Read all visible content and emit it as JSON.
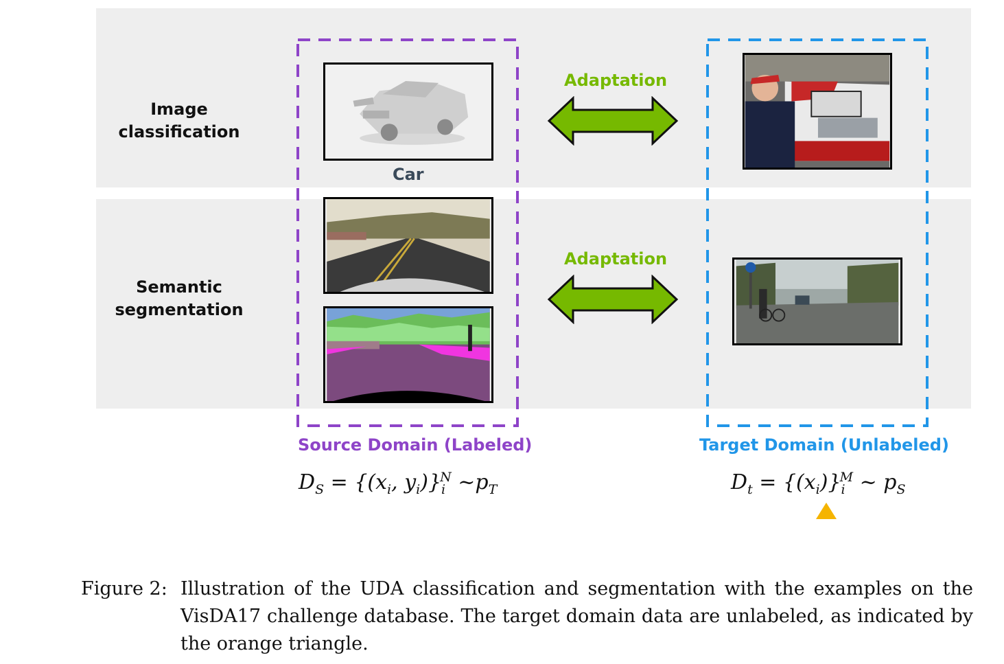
{
  "rows": {
    "classification": {
      "line1": "Image",
      "line2": "classification"
    },
    "segmentation": {
      "line1": "Semantic",
      "line2": "segmentation"
    }
  },
  "source": {
    "car_caption": "Car",
    "label": "Source Domain (Labeled)",
    "label_color": "#8e44c8",
    "formula": {
      "lhs": "D",
      "lhs_sub": "S",
      "eq": "=",
      "set": "{(x",
      "i1": "i",
      "comma": ", y",
      "i2": "i",
      "close": ")}",
      "sub": "i",
      "sup": "N",
      "tilde": "~p",
      "p_sub": "T"
    }
  },
  "target": {
    "label": "Target Domain (Unlabeled)",
    "label_color": "#2196e8",
    "formula": {
      "lhs": "D",
      "lhs_sub": "t",
      "eq": "=",
      "set": "{(x",
      "i1": "i",
      "close": ")}",
      "sub": "i",
      "sup": "M",
      "tilde": "~ p",
      "p_sub": "S"
    }
  },
  "adaptation": {
    "label_top": "Adaptation",
    "label_bottom": "Adaptation",
    "color": "#76b900"
  },
  "figure_caption": {
    "number": "Figure 2:",
    "text": "Illustration of the UDA classification and segmentation with the examples on the VisDA17 challenge database. The target domain data are unlabeled, as indicated by the orange triangle."
  }
}
